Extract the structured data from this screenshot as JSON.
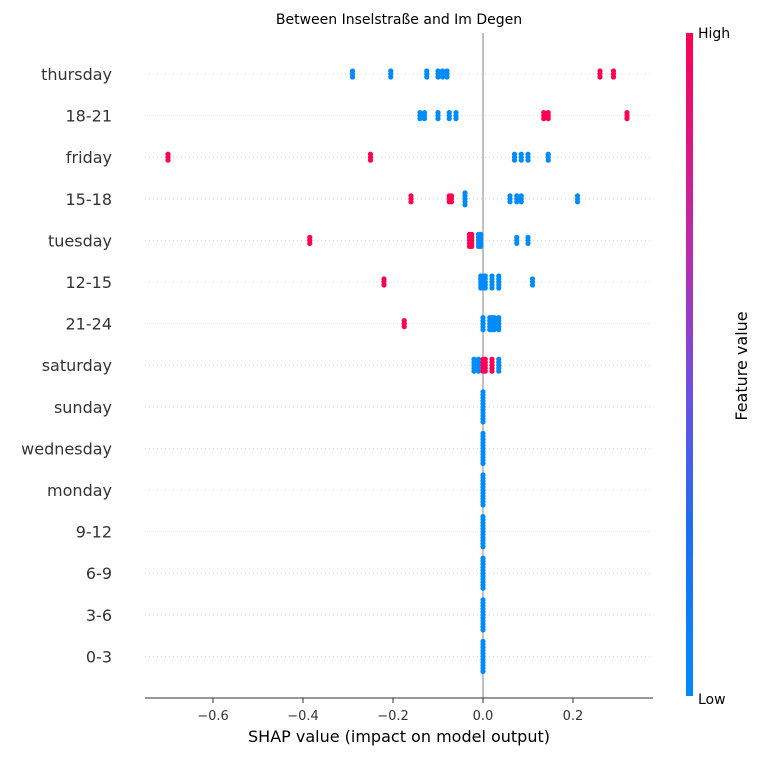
{
  "chart_data": {
    "type": "scatter",
    "subtype": "shap-beeswarm",
    "title": "Between Inselstraße and Im Degen",
    "xlabel": "SHAP value (impact on model output)",
    "xlim": [
      -0.75,
      0.37
    ],
    "xticks": [
      -0.6,
      -0.4,
      -0.2,
      0.0,
      0.2
    ],
    "xtick_labels": [
      "−0.6",
      "−0.4",
      "−0.2",
      "0.0",
      "0.2"
    ],
    "zero_line": true,
    "row_gridlines": "dotted",
    "colorbar": {
      "label": "Feature value",
      "high_label": "High",
      "low_label": "Low",
      "low_color": "#008bfb",
      "high_color": "#ff0052"
    },
    "features": [
      {
        "name": "thursday",
        "points": [
          {
            "x": -0.29,
            "v": 0
          },
          {
            "x": -0.205,
            "v": 0
          },
          {
            "x": -0.125,
            "v": 0
          },
          {
            "x": -0.1,
            "v": 0
          },
          {
            "x": -0.08,
            "v": 0
          },
          {
            "x": -0.09,
            "v": 0
          },
          {
            "x": 0.26,
            "v": 1
          },
          {
            "x": 0.29,
            "v": 1
          }
        ]
      },
      {
        "name": "18-21",
        "points": [
          {
            "x": -0.14,
            "v": 0
          },
          {
            "x": -0.13,
            "v": 0
          },
          {
            "x": -0.1,
            "v": 0
          },
          {
            "x": -0.075,
            "v": 0
          },
          {
            "x": -0.06,
            "v": 0
          },
          {
            "x": 0.135,
            "v": 1
          },
          {
            "x": 0.145,
            "v": 1
          },
          {
            "x": 0.32,
            "v": 1
          }
        ]
      },
      {
        "name": "friday",
        "points": [
          {
            "x": -0.7,
            "v": 1
          },
          {
            "x": -0.25,
            "v": 1
          },
          {
            "x": 0.07,
            "v": 0
          },
          {
            "x": 0.085,
            "v": 0
          },
          {
            "x": 0.1,
            "v": 0
          },
          {
            "x": 0.145,
            "v": 0
          }
        ]
      },
      {
        "name": "15-18",
        "points": [
          {
            "x": -0.16,
            "v": 1
          },
          {
            "x": -0.075,
            "v": 1
          },
          {
            "x": -0.07,
            "v": 1
          },
          {
            "x": -0.04,
            "v": 0
          },
          {
            "x": 0.06,
            "v": 0
          },
          {
            "x": 0.075,
            "v": 0
          },
          {
            "x": 0.085,
            "v": 0
          },
          {
            "x": 0.21,
            "v": 0
          }
        ]
      },
      {
        "name": "tuesday",
        "points": [
          {
            "x": -0.385,
            "v": 1
          },
          {
            "x": -0.03,
            "v": 1
          },
          {
            "x": -0.025,
            "v": 1
          },
          {
            "x": -0.01,
            "v": 0
          },
          {
            "x": -0.005,
            "v": 0
          },
          {
            "x": 0.075,
            "v": 0
          },
          {
            "x": 0.1,
            "v": 0
          }
        ]
      },
      {
        "name": "12-15",
        "points": [
          {
            "x": -0.22,
            "v": 1
          },
          {
            "x": -0.005,
            "v": 0
          },
          {
            "x": 0.0,
            "v": 0
          },
          {
            "x": 0.005,
            "v": 0
          },
          {
            "x": 0.02,
            "v": 0
          },
          {
            "x": 0.035,
            "v": 0
          },
          {
            "x": 0.11,
            "v": 0
          }
        ]
      },
      {
        "name": "21-24",
        "points": [
          {
            "x": -0.175,
            "v": 1
          },
          {
            "x": 0.0,
            "v": 0
          },
          {
            "x": 0.015,
            "v": 0
          },
          {
            "x": 0.02,
            "v": 0
          },
          {
            "x": 0.025,
            "v": 0
          },
          {
            "x": 0.035,
            "v": 0
          }
        ]
      },
      {
        "name": "saturday",
        "points": [
          {
            "x": -0.02,
            "v": 0
          },
          {
            "x": -0.01,
            "v": 0
          },
          {
            "x": 0.0,
            "v": 1
          },
          {
            "x": 0.005,
            "v": 1
          },
          {
            "x": 0.02,
            "v": 1
          },
          {
            "x": 0.035,
            "v": 0
          }
        ]
      },
      {
        "name": "sunday",
        "points": [
          {
            "x": 0.0,
            "v": 0
          }
        ]
      },
      {
        "name": "wednesday",
        "points": [
          {
            "x": 0.0,
            "v": 0
          }
        ]
      },
      {
        "name": "monday",
        "points": [
          {
            "x": 0.0,
            "v": 0
          }
        ]
      },
      {
        "name": "9-12",
        "points": [
          {
            "x": 0.0,
            "v": 0
          }
        ]
      },
      {
        "name": "6-9",
        "points": [
          {
            "x": 0.0,
            "v": 0
          }
        ]
      },
      {
        "name": "3-6",
        "points": [
          {
            "x": 0.0,
            "v": 0
          }
        ]
      },
      {
        "name": "0-3",
        "points": [
          {
            "x": 0.0,
            "v": 0
          }
        ]
      }
    ]
  }
}
